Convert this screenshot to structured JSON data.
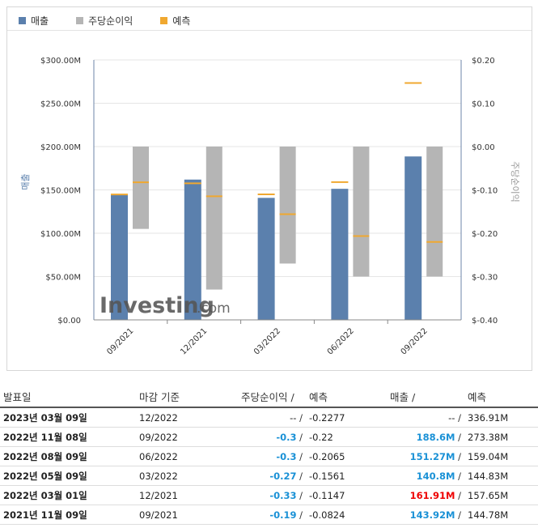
{
  "legend": [
    {
      "label": "매출",
      "color": "#5b80ad"
    },
    {
      "label": "주당순이익",
      "color": "#b5b5b5"
    },
    {
      "label": "예측",
      "color": "#f0a830"
    }
  ],
  "watermark": {
    "brand": "Investing",
    "suffix": ".com"
  },
  "chart_data": {
    "type": "bar",
    "categories": [
      "09/2021",
      "12/2021",
      "03/2022",
      "06/2022",
      "09/2022"
    ],
    "series": [
      {
        "name": "매출",
        "axis": "left",
        "values": [
          143.92,
          161.91,
          140.8,
          151.27,
          188.6
        ],
        "color": "#5b80ad"
      },
      {
        "name": "주당순이익",
        "axis": "right",
        "values": [
          -0.19,
          -0.33,
          -0.27,
          -0.3,
          -0.3
        ],
        "color": "#b5b5b5"
      },
      {
        "name": "예측",
        "kind": "marker",
        "revenue_forecast": [
          144.78,
          157.65,
          144.83,
          159.04,
          273.38
        ],
        "eps_forecast": [
          -0.0824,
          -0.1147,
          -0.1561,
          -0.2065,
          -0.22
        ],
        "color": "#f0a830"
      }
    ],
    "left_axis": {
      "label": "매출",
      "ylim": [
        0,
        300
      ],
      "ticks": [
        "$0.00",
        "$50.00M",
        "$100.00M",
        "$150.00M",
        "$200.00M",
        "$250.00M",
        "$300.00M"
      ]
    },
    "right_axis": {
      "label": "주당순이익",
      "ylim": [
        -0.4,
        0.2
      ],
      "ticks": [
        "$-0.40",
        "$-0.30",
        "$-0.20",
        "$-0.10",
        "$0.00",
        "$0.10",
        "$0.20"
      ]
    },
    "grid": true
  },
  "table": {
    "headers": {
      "date": "발표일",
      "period": "마감 기준",
      "eps": "주당순이익",
      "eps_fc": "예측",
      "rev": "매출",
      "rev_fc": "예측",
      "slash": "/"
    },
    "rows": [
      {
        "date": "2023년 03월 09일",
        "period": "12/2022",
        "eps": "--",
        "eps_fc": "-0.2277",
        "rev": "--",
        "rev_fc": "336.91M",
        "eps_tone": "none",
        "rev_tone": "none"
      },
      {
        "date": "2022년 11월 08일",
        "period": "09/2022",
        "eps": "-0.3",
        "eps_fc": "-0.22",
        "rev": "188.6M",
        "rev_fc": "273.38M",
        "eps_tone": "blue",
        "rev_tone": "blue"
      },
      {
        "date": "2022년 08월 09일",
        "period": "06/2022",
        "eps": "-0.3",
        "eps_fc": "-0.2065",
        "rev": "151.27M",
        "rev_fc": "159.04M",
        "eps_tone": "blue",
        "rev_tone": "blue"
      },
      {
        "date": "2022년 05월 09일",
        "period": "03/2022",
        "eps": "-0.27",
        "eps_fc": "-0.1561",
        "rev": "140.8M",
        "rev_fc": "144.83M",
        "eps_tone": "blue",
        "rev_tone": "blue"
      },
      {
        "date": "2022년 03월 01일",
        "period": "12/2021",
        "eps": "-0.33",
        "eps_fc": "-0.1147",
        "rev": "161.91M",
        "rev_fc": "157.65M",
        "eps_tone": "blue",
        "rev_tone": "red"
      },
      {
        "date": "2021년 11월 09일",
        "period": "09/2021",
        "eps": "-0.19",
        "eps_fc": "-0.0824",
        "rev": "143.92M",
        "rev_fc": "144.78M",
        "eps_tone": "blue",
        "rev_tone": "blue"
      }
    ]
  }
}
